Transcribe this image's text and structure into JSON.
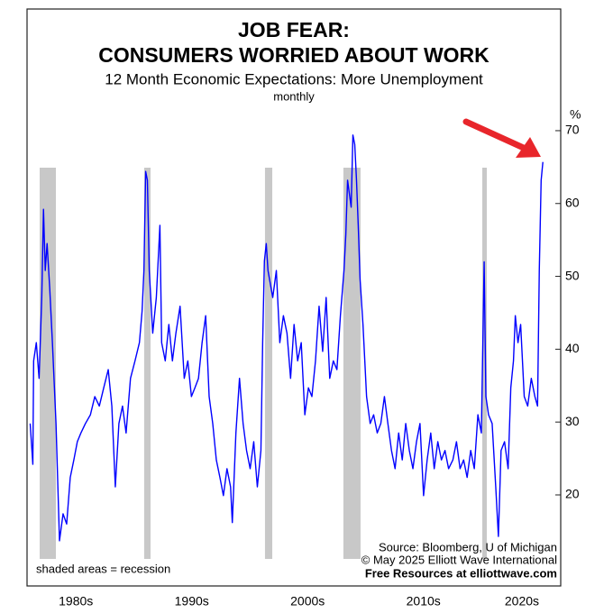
{
  "chart_data": {
    "type": "line",
    "title": [
      "JOB FEAR:",
      "CONSUMERS WORRIED ABOUT WORK"
    ],
    "subtitle": "12 Month Economic Expectations: More Unemployment",
    "frequency": "monthly",
    "y_unit": "%",
    "note": "shaded areas = recession",
    "source": [
      "Source: Bloomberg, U of Michigan",
      "© May 2025 Elliott Wave International",
      "Free Resources at elliottwave.com"
    ],
    "color": "#0000ff",
    "recession_color": "#c8c8c8",
    "recessions": [
      [
        1981.87,
        1983.27
      ],
      [
        1990.89,
        1991.44
      ],
      [
        2001.32,
        2001.95
      ],
      [
        2008.09,
        2009.57
      ],
      [
        2020.08,
        2020.47
      ]
    ],
    "x": [
      1981.05,
      1981.28,
      1981.35,
      1981.58,
      1981.82,
      1982.05,
      1982.2,
      1982.35,
      1982.51,
      1982.74,
      1982.97,
      1983.28,
      1983.58,
      1983.89,
      1984.2,
      1984.51,
      1984.82,
      1985.12,
      1985.43,
      1985.82,
      1986.25,
      1986.63,
      1987.02,
      1987.4,
      1987.79,
      1988.1,
      1988.4,
      1988.71,
      1989.02,
      1989.33,
      1989.71,
      1990.1,
      1990.48,
      1990.71,
      1990.87,
      1991.02,
      1991.17,
      1991.33,
      1991.63,
      1991.94,
      1992.25,
      1992.4,
      1992.71,
      1993.02,
      1993.33,
      1993.63,
      1993.99,
      1994.35,
      1994.66,
      1994.97,
      1995.27,
      1995.58,
      1995.89,
      1996.2,
      1996.5,
      1996.81,
      1997.12,
      1997.43,
      1997.73,
      1998.04,
      1998.35,
      1998.5,
      1998.81,
      1999.12,
      1999.43,
      1999.73,
      2000.04,
      2000.35,
      2000.66,
      2000.97,
      2001.12,
      2001.27,
      2001.43,
      2001.58,
      2001.99,
      2002.3,
      2002.6,
      2002.91,
      2003.22,
      2003.53,
      2003.83,
      2004.14,
      2004.45,
      2004.76,
      2005.07,
      2005.37,
      2005.68,
      2005.99,
      2006.3,
      2006.6,
      2006.91,
      2007.22,
      2007.53,
      2007.83,
      2008.14,
      2008.3,
      2008.45,
      2008.76,
      2008.91,
      2009.07,
      2009.22,
      2009.37,
      2009.53,
      2009.78,
      2010.09,
      2010.4,
      2010.7,
      2011.01,
      2011.32,
      2011.63,
      2011.93,
      2012.24,
      2012.55,
      2012.86,
      2013.17,
      2013.47,
      2013.78,
      2014.09,
      2014.4,
      2014.7,
      2015.01,
      2015.32,
      2015.63,
      2015.93,
      2016.24,
      2016.55,
      2016.86,
      2017.17,
      2017.54,
      2017.85,
      2018.16,
      2018.47,
      2018.77,
      2019.08,
      2019.39,
      2019.7,
      2020.0,
      2020.24,
      2020.39,
      2020.62,
      2020.93,
      2021.24,
      2021.47,
      2021.7,
      2022.0,
      2022.31,
      2022.54,
      2022.77,
      2022.93,
      2023.16,
      2023.39,
      2023.7,
      2024.0,
      2024.31,
      2024.62,
      2024.85,
      2025.0,
      2025.16,
      2025.31
    ],
    "values": [
      29.8,
      24.2,
      38.4,
      40.9,
      36.0,
      47.1,
      59.2,
      50.8,
      54.5,
      48.3,
      40.9,
      29.8,
      13.7,
      17.4,
      16.0,
      22.4,
      24.8,
      27.3,
      28.5,
      29.8,
      31.0,
      33.5,
      32.2,
      34.7,
      37.2,
      32.2,
      21.1,
      29.8,
      32.2,
      28.5,
      36.0,
      38.4,
      40.9,
      45.2,
      50.8,
      64.4,
      63.2,
      50.8,
      42.2,
      47.1,
      57.0,
      40.9,
      38.4,
      43.4,
      38.4,
      42.2,
      45.9,
      36.0,
      38.4,
      33.5,
      34.7,
      36.0,
      40.9,
      44.6,
      33.5,
      29.8,
      24.8,
      22.4,
      19.9,
      23.6,
      21.1,
      16.2,
      28.5,
      36.0,
      29.8,
      26.1,
      23.6,
      27.3,
      21.1,
      26.1,
      40.9,
      52.1,
      54.5,
      50.8,
      47.1,
      50.8,
      40.9,
      44.6,
      42.2,
      36.0,
      43.4,
      38.4,
      40.9,
      31.0,
      34.7,
      33.5,
      38.4,
      45.9,
      39.7,
      47.1,
      36.0,
      38.4,
      37.2,
      44.6,
      50.8,
      55.8,
      63.2,
      59.5,
      69.4,
      68.1,
      63.2,
      57.0,
      49.6,
      43.4,
      33.5,
      29.8,
      31.0,
      28.5,
      29.8,
      33.5,
      29.8,
      26.1,
      23.6,
      28.5,
      24.8,
      29.8,
      26.1,
      23.6,
      27.3,
      29.8,
      19.9,
      24.8,
      28.5,
      23.6,
      27.3,
      24.8,
      26.1,
      23.6,
      24.8,
      27.3,
      23.6,
      24.8,
      22.4,
      26.1,
      23.6,
      31.0,
      28.5,
      52.0,
      33.5,
      31.0,
      29.8,
      21.1,
      14.3,
      26.1,
      27.3,
      23.6,
      34.7,
      38.4,
      44.6,
      40.9,
      43.4,
      33.5,
      32.2,
      36.0,
      33.5,
      32.2,
      50.8,
      63.2,
      65.7
    ],
    "xlim": [
      1980.78,
      2025.76
    ],
    "ylim": [
      7.5,
      86.7
    ],
    "yticks": [
      20,
      30,
      40,
      50,
      60,
      70
    ],
    "xticks": [
      {
        "value": 1985,
        "label": "1980s"
      },
      {
        "value": 1995,
        "label": "1990s"
      },
      {
        "value": 2005,
        "label": "2000s"
      },
      {
        "value": 2015,
        "label": "2010s"
      },
      {
        "value": 2023.5,
        "label": "2020s"
      }
    ]
  }
}
